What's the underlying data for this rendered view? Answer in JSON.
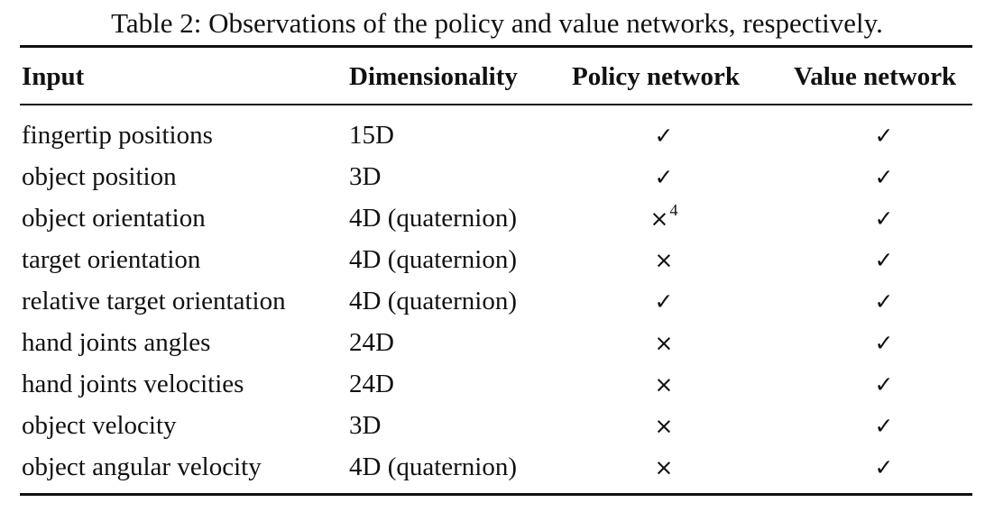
{
  "caption": "Table 2: Observations of the policy and value networks, respectively.",
  "table": {
    "columns": [
      "Input",
      "Dimensionality",
      "Policy network",
      "Value network"
    ],
    "rows": [
      {
        "input": "fingertip positions",
        "dim": "15D",
        "policy": "✓",
        "policy_note": "",
        "value": "✓"
      },
      {
        "input": "object position",
        "dim": "3D",
        "policy": "✓",
        "policy_note": "",
        "value": "✓"
      },
      {
        "input": "object orientation",
        "dim": "4D (quaternion)",
        "policy": "×",
        "policy_note": "4",
        "value": "✓"
      },
      {
        "input": "target orientation",
        "dim": "4D (quaternion)",
        "policy": "×",
        "policy_note": "",
        "value": "✓"
      },
      {
        "input": "relative target orientation",
        "dim": "4D (quaternion)",
        "policy": "✓",
        "policy_note": "",
        "value": "✓"
      },
      {
        "input": "hand joints angles",
        "dim": "24D",
        "policy": "×",
        "policy_note": "",
        "value": "✓"
      },
      {
        "input": "hand joints velocities",
        "dim": "24D",
        "policy": "×",
        "policy_note": "",
        "value": "✓"
      },
      {
        "input": "object velocity",
        "dim": "3D",
        "policy": "×",
        "policy_note": "",
        "value": "✓"
      },
      {
        "input": "object angular velocity",
        "dim": "4D (quaternion)",
        "policy": "×",
        "policy_note": "",
        "value": "✓"
      }
    ]
  }
}
